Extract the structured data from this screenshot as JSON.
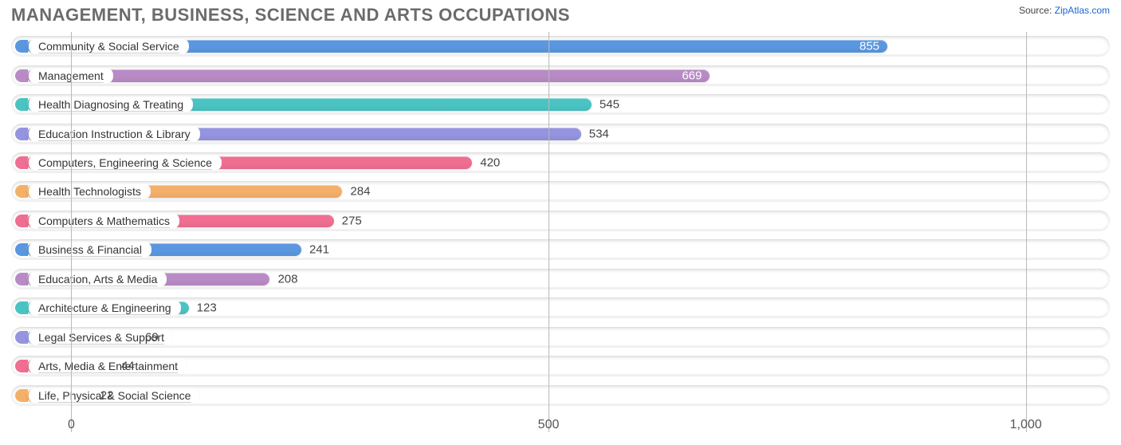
{
  "title": "MANAGEMENT, BUSINESS, SCIENCE AND ARTS OCCUPATIONS",
  "source": {
    "label": "Source:",
    "name": "ZipAtlas.com"
  },
  "chart": {
    "type": "bar-horizontal",
    "background_color": "#ffffff",
    "track_bg": "#f3f3f3",
    "grid_color": "#b9b9b9",
    "title_color": "#6b6b6b",
    "title_fontsize": 22,
    "value_fontsize": 15,
    "category_fontsize": 14,
    "xlim_min": -63,
    "xlim_max": 1088,
    "xticks": [
      0,
      500,
      1000
    ],
    "bar_left_value": -47,
    "bar_radius": 9,
    "label_text_color": "#333333",
    "value_text_color": "#444444",
    "value_inside_color": "#ffffff",
    "palette": {
      "blue": "#5a97e0",
      "teal": "#4bc3c3",
      "pink": "#ef6e91",
      "orange": "#f4b06a",
      "mauve": "#b98bc6",
      "violet": "#9494e0"
    },
    "rows": [
      {
        "label": "Community & Social Service",
        "value": 855,
        "color": "#5a97e0",
        "value_inside": true
      },
      {
        "label": "Management",
        "value": 669,
        "color": "#b98bc6",
        "value_inside": true
      },
      {
        "label": "Health Diagnosing & Treating",
        "value": 545,
        "color": "#4bc3c3",
        "value_inside": false
      },
      {
        "label": "Education Instruction & Library",
        "value": 534,
        "color": "#9494e0",
        "value_inside": false
      },
      {
        "label": "Computers, Engineering & Science",
        "value": 420,
        "color": "#ef6e91",
        "value_inside": false
      },
      {
        "label": "Health Technologists",
        "value": 284,
        "color": "#f4b06a",
        "value_inside": false
      },
      {
        "label": "Computers & Mathematics",
        "value": 275,
        "color": "#ef6e91",
        "value_inside": false
      },
      {
        "label": "Business & Financial",
        "value": 241,
        "color": "#5a97e0",
        "value_inside": false
      },
      {
        "label": "Education, Arts & Media",
        "value": 208,
        "color": "#b98bc6",
        "value_inside": false
      },
      {
        "label": "Architecture & Engineering",
        "value": 123,
        "color": "#4bc3c3",
        "value_inside": false
      },
      {
        "label": "Legal Services & Support",
        "value": 69,
        "color": "#9494e0",
        "value_inside": false
      },
      {
        "label": "Arts, Media & Entertainment",
        "value": 44,
        "color": "#ef6e91",
        "value_inside": false
      },
      {
        "label": "Life, Physical & Social Science",
        "value": 22,
        "color": "#f4b06a",
        "value_inside": false
      }
    ]
  }
}
